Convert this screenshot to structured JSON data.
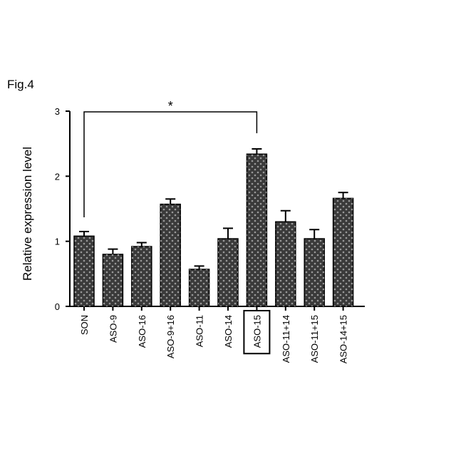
{
  "figure_label": "Fig.4",
  "chart_data": {
    "type": "bar",
    "ylabel": "Relative expression level",
    "categories": [
      "SON",
      "ASO-9",
      "ASO-16",
      "ASO-9+16",
      "ASO-11",
      "ASO-14",
      "ASO-15",
      "ASO-11+14",
      "ASO-11+15",
      "ASO-14+15"
    ],
    "values": [
      1.08,
      0.8,
      0.92,
      1.57,
      0.57,
      1.04,
      2.34,
      1.3,
      1.04,
      1.66
    ],
    "errors": [
      0.07,
      0.08,
      0.06,
      0.08,
      0.05,
      0.16,
      0.08,
      0.17,
      0.14,
      0.09
    ],
    "color": "#3a3a3a",
    "ylim": [
      0,
      3
    ],
    "yticks": [
      0,
      1,
      2,
      3
    ],
    "annotation": "*"
  }
}
